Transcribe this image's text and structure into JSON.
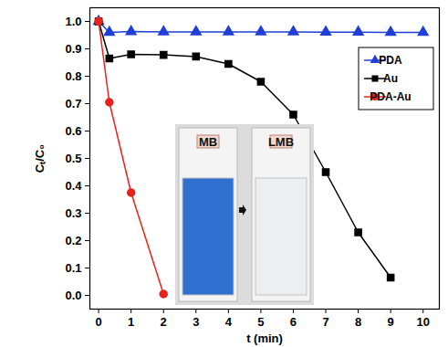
{
  "chart_data": {
    "type": "line",
    "x_label": "t (min)",
    "y_label": "Cₜ/C₀",
    "x": [
      0,
      0.33,
      1,
      2,
      3,
      4,
      5,
      6,
      7,
      8,
      9,
      10
    ],
    "series": [
      {
        "name": "PDA",
        "color": "#1f3fd6",
        "marker": "triangle",
        "values": [
          1.0,
          0.96,
          0.963,
          0.962,
          0.962,
          0.962,
          0.962,
          0.962,
          0.961,
          0.961,
          0.96,
          0.96
        ]
      },
      {
        "name": "Au",
        "color": "#000000",
        "marker": "square",
        "values": [
          1.0,
          0.865,
          0.88,
          0.878,
          0.872,
          0.845,
          0.78,
          0.66,
          0.45,
          0.23,
          0.065,
          null
        ]
      },
      {
        "name": "PDA-Au",
        "color": "#e8231b",
        "marker": "circle",
        "values": [
          1.0,
          0.705,
          0.375,
          0.005,
          null,
          null,
          null,
          null,
          null,
          null,
          null,
          null
        ]
      }
    ],
    "xlim": [
      -0.27,
      10.5
    ],
    "xticks": [
      0,
      1,
      2,
      3,
      4,
      5,
      6,
      7,
      8,
      9,
      10
    ],
    "ylim": [
      -0.05,
      1.05
    ],
    "yticks": [
      {
        "value": 0,
        "label": "0.0"
      },
      0.1,
      0.2,
      0.3,
      0.4,
      0.5,
      0.6,
      0.7,
      0.8,
      0.9,
      {
        "value": 1,
        "label": "1.0"
      }
    ],
    "legend": "top-right",
    "grid": false,
    "annotations": [
      "MB",
      "LMB"
    ]
  }
}
